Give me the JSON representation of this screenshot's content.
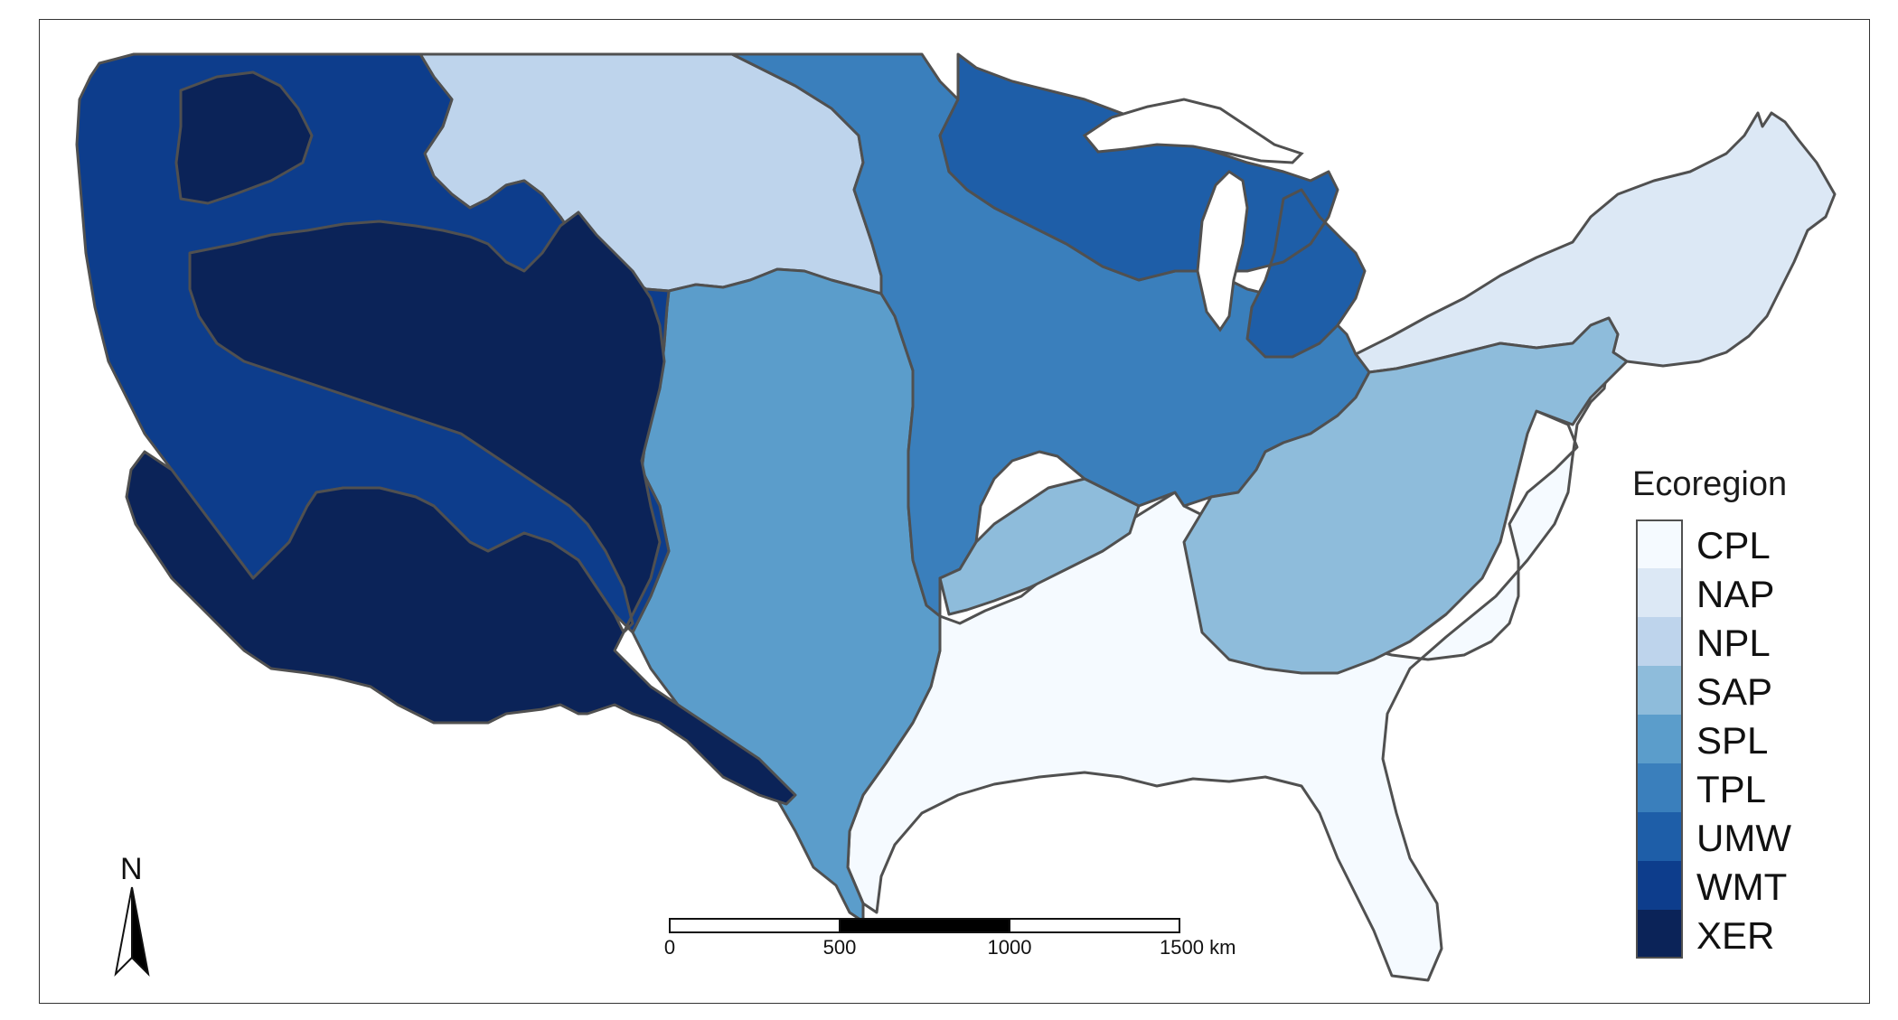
{
  "legend": {
    "title": "Ecoregion",
    "items": [
      {
        "label": "CPL",
        "color": "#F5FAFF"
      },
      {
        "label": "NAP",
        "color": "#DCE8F5"
      },
      {
        "label": "NPL",
        "color": "#BED4EC"
      },
      {
        "label": "SAP",
        "color": "#8EBCDB"
      },
      {
        "label": "SPL",
        "color": "#5B9DCB"
      },
      {
        "label": "TPL",
        "color": "#3A7FBC"
      },
      {
        "label": "UMW",
        "color": "#1E5EA8"
      },
      {
        "label": "WMT",
        "color": "#0D3D8C"
      },
      {
        "label": "XER",
        "color": "#0B2358"
      }
    ]
  },
  "scale_bar": {
    "ticks": [
      "0",
      "500",
      "1000",
      "1500 km"
    ]
  },
  "north_arrow": {
    "label": "N"
  }
}
